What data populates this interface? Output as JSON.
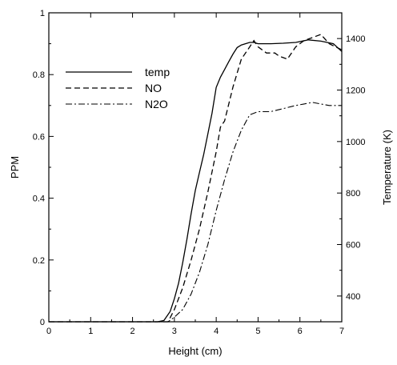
{
  "chart_data": {
    "type": "line",
    "xlabel": "Height (cm)",
    "ylabel_left": "PPM",
    "ylabel_right": "Temperature (K)",
    "xlim": [
      0,
      7
    ],
    "ylim_left": [
      0,
      1
    ],
    "ylim_right": [
      300,
      1500
    ],
    "x_ticks": [
      0,
      1,
      2,
      3,
      4,
      5,
      6,
      7
    ],
    "y_left_ticks": [
      0,
      0.2,
      0.4,
      0.6,
      0.8,
      1
    ],
    "y_right_ticks": [
      400,
      600,
      800,
      1000,
      1200,
      1400
    ],
    "legend_position": "top-left",
    "series": [
      {
        "name": "temp",
        "axis": "right",
        "style": "solid",
        "x": [
          0,
          2.6,
          2.75,
          2.9,
          3.0,
          3.1,
          3.2,
          3.3,
          3.4,
          3.5,
          3.6,
          3.7,
          3.8,
          3.9,
          4.0,
          4.1,
          4.2,
          4.3,
          4.4,
          4.5,
          4.6,
          4.7,
          4.8,
          4.9,
          5.0,
          5.3,
          5.6,
          5.9,
          6.2,
          6.5,
          6.8,
          7.0
        ],
        "y": [
          300,
          300,
          305,
          340,
          390,
          450,
          530,
          620,
          720,
          810,
          880,
          950,
          1030,
          1110,
          1210,
          1250,
          1280,
          1310,
          1340,
          1365,
          1375,
          1380,
          1385,
          1385,
          1380,
          1380,
          1382,
          1385,
          1395,
          1390,
          1380,
          1350
        ]
      },
      {
        "name": "NO",
        "axis": "left",
        "style": "dashed",
        "x": [
          0,
          2.85,
          3.0,
          3.2,
          3.4,
          3.6,
          3.8,
          4.0,
          4.1,
          4.2,
          4.4,
          4.6,
          4.8,
          4.9,
          5.0,
          5.2,
          5.4,
          5.5,
          5.7,
          5.9,
          6.1,
          6.3,
          6.5,
          6.7,
          7.0
        ],
        "y": [
          0,
          0,
          0.04,
          0.11,
          0.2,
          0.3,
          0.42,
          0.55,
          0.63,
          0.65,
          0.76,
          0.85,
          0.89,
          0.91,
          0.89,
          0.87,
          0.87,
          0.86,
          0.85,
          0.89,
          0.91,
          0.92,
          0.93,
          0.9,
          0.88
        ]
      },
      {
        "name": "N2O",
        "axis": "left",
        "style": "dashdot",
        "x": [
          0,
          2.85,
          3.0,
          3.2,
          3.4,
          3.6,
          3.8,
          4.0,
          4.2,
          4.4,
          4.6,
          4.8,
          5.0,
          5.3,
          5.6,
          5.9,
          6.1,
          6.3,
          6.5,
          6.7,
          7.0
        ],
        "y": [
          0,
          0,
          0.015,
          0.04,
          0.09,
          0.16,
          0.25,
          0.36,
          0.46,
          0.55,
          0.62,
          0.67,
          0.68,
          0.68,
          0.69,
          0.7,
          0.705,
          0.71,
          0.705,
          0.7,
          0.7
        ]
      }
    ]
  }
}
